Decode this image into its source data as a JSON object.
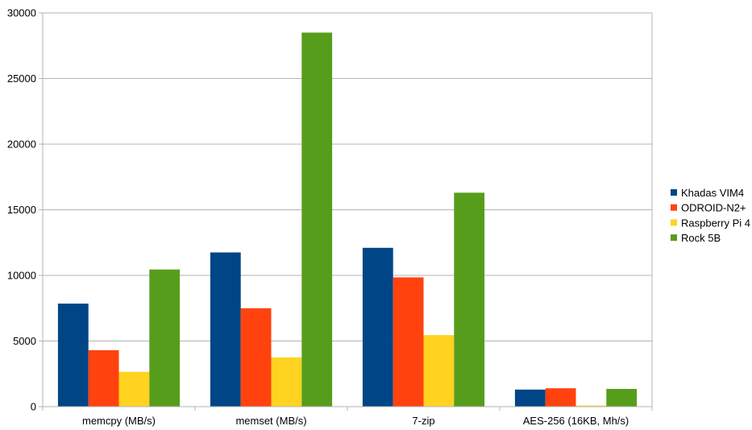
{
  "chart_data": {
    "type": "bar",
    "title": "",
    "xlabel": "",
    "ylabel": "",
    "categories": [
      "memcpy (MB/s)",
      "memset (MB/s)",
      "7-zip",
      "AES-256 (16KB, Mh/s)"
    ],
    "series": [
      {
        "name": "Khadas VIM4",
        "color": "#004586",
        "values": [
          7850,
          11750,
          12100,
          1300
        ]
      },
      {
        "name": "ODROID-N2+",
        "color": "#ff420e",
        "values": [
          4300,
          7500,
          9850,
          1400
        ]
      },
      {
        "name": "Raspberry Pi 4",
        "color": "#ffd320",
        "values": [
          2650,
          3750,
          5450,
          80
        ]
      },
      {
        "name": "Rock 5B",
        "color": "#579d1c",
        "values": [
          10450,
          28500,
          16300,
          1350
        ]
      }
    ],
    "ylim": [
      0,
      30000
    ],
    "yticks": [
      0,
      5000,
      10000,
      15000,
      20000,
      25000,
      30000
    ],
    "grid": true,
    "legend_position": "right"
  }
}
